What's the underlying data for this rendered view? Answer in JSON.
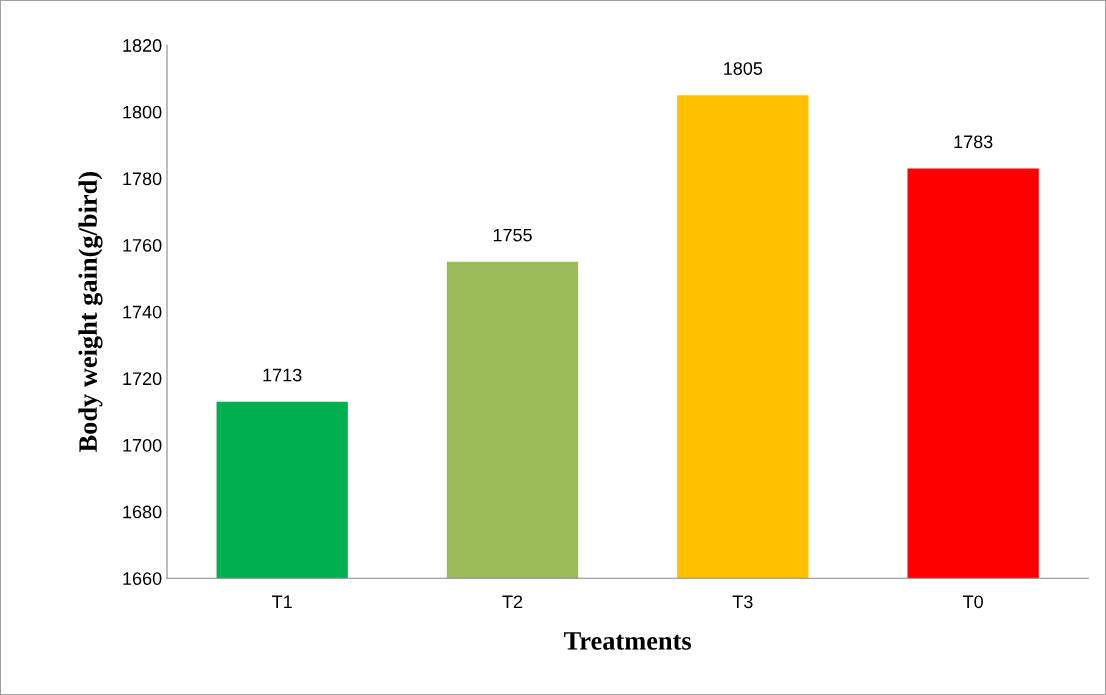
{
  "chart_data": {
    "type": "bar",
    "xlabel": "Treatments",
    "ylabel": "Body weight gain(g/bird)",
    "categories": [
      "T1",
      "T2",
      "T3",
      "T0"
    ],
    "values": [
      1713,
      1755,
      1805,
      1783
    ],
    "colors": [
      "#00b050",
      "#9bbb59",
      "#ffc000",
      "#ff0000"
    ],
    "ylim": [
      1660,
      1820
    ],
    "yticks": [
      1660,
      1680,
      1700,
      1720,
      1740,
      1760,
      1780,
      1800,
      1820
    ],
    "data_labels": true,
    "grid": false,
    "legend": false
  }
}
